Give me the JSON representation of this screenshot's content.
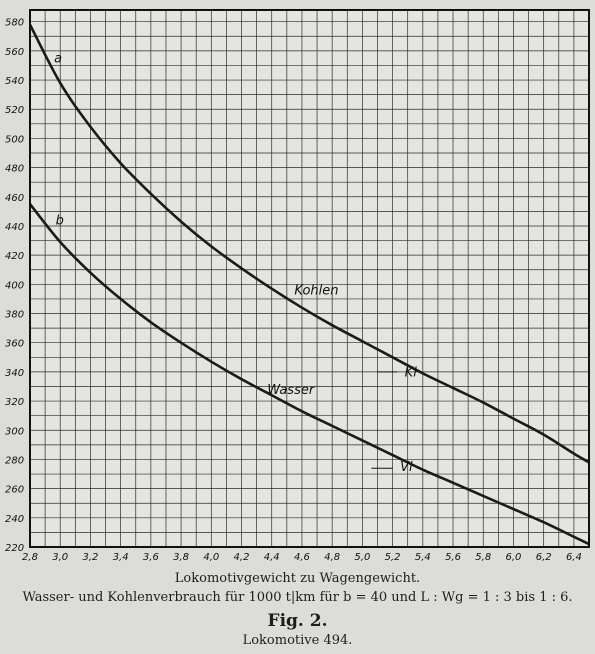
{
  "chart_data": {
    "type": "line",
    "x_ticks": [
      "2,8",
      "3,0",
      "3,2",
      "3,4",
      "3,6",
      "3,8",
      "4,0",
      "4,2",
      "4,4",
      "4,6",
      "4,8",
      "5,0",
      "5,2",
      "5,4",
      "5,6",
      "5,8",
      "6,0",
      "6,2",
      "6,4"
    ],
    "y_ticks": [
      "220",
      "240",
      "260",
      "280",
      "300",
      "320",
      "340",
      "360",
      "380",
      "400",
      "420",
      "440",
      "460",
      "480",
      "500",
      "520",
      "540",
      "560",
      "580"
    ],
    "xlim": [
      2.8,
      6.5
    ],
    "ylim": [
      220,
      588
    ],
    "grid": true,
    "series": [
      {
        "name": "Kohlen",
        "label": "a",
        "end_label": "Kl",
        "color": "#1a1a1a",
        "x": [
          2.8,
          3.0,
          3.2,
          3.4,
          3.6,
          3.8,
          4.0,
          4.2,
          4.4,
          4.6,
          4.8,
          5.0,
          5.2,
          5.4,
          5.6,
          5.8,
          6.0,
          6.2,
          6.4,
          6.5
        ],
        "y": [
          578,
          538,
          508,
          483,
          462,
          443,
          426,
          411,
          397,
          384,
          372,
          361,
          350,
          339,
          329,
          319,
          308,
          297,
          284,
          278
        ]
      },
      {
        "name": "Wasser",
        "label": "b",
        "end_label": "Vl",
        "color": "#1a1a1a",
        "x": [
          2.8,
          3.0,
          3.2,
          3.4,
          3.6,
          3.8,
          4.0,
          4.2,
          4.4,
          4.6,
          4.8,
          5.0,
          5.2,
          5.4,
          5.6,
          5.8,
          6.0,
          6.2,
          6.4,
          6.5
        ],
        "y": [
          455,
          429,
          408,
          390,
          374,
          360,
          347,
          335,
          324,
          313,
          303,
          293,
          283,
          273,
          264,
          255,
          246,
          237,
          227,
          222
        ]
      }
    ]
  },
  "caption": {
    "line1": "Lokomotivgewicht zu Wagengewicht.",
    "line2": "Wasser- und Kohlenverbrauch für 1000 t|km für b = 40 und L : Wg = 1 : 3 bis 1 : 6.",
    "fig": "Fig. 2.",
    "sub": "Lokomotive 494."
  }
}
